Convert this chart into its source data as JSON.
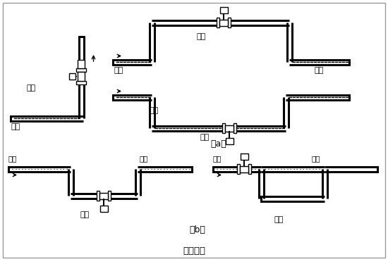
{
  "title": "图（四）",
  "label_a": "（a）",
  "label_b": "（b）",
  "bg_color": "#ffffff",
  "lc": "#000000",
  "texts": {
    "correct_a": "正确",
    "wrong_a": "错误",
    "liquid_a1": "液体",
    "liquid_a2": "液体",
    "liquid_a3": "液体",
    "liquid_a4": "液体",
    "bubble_b1": "气泡",
    "bubble_b2": "气泡",
    "bubble_b3": "气泡",
    "bubble_b4": "气泡",
    "correct_b": "正确",
    "wrong_b": "错误"
  }
}
